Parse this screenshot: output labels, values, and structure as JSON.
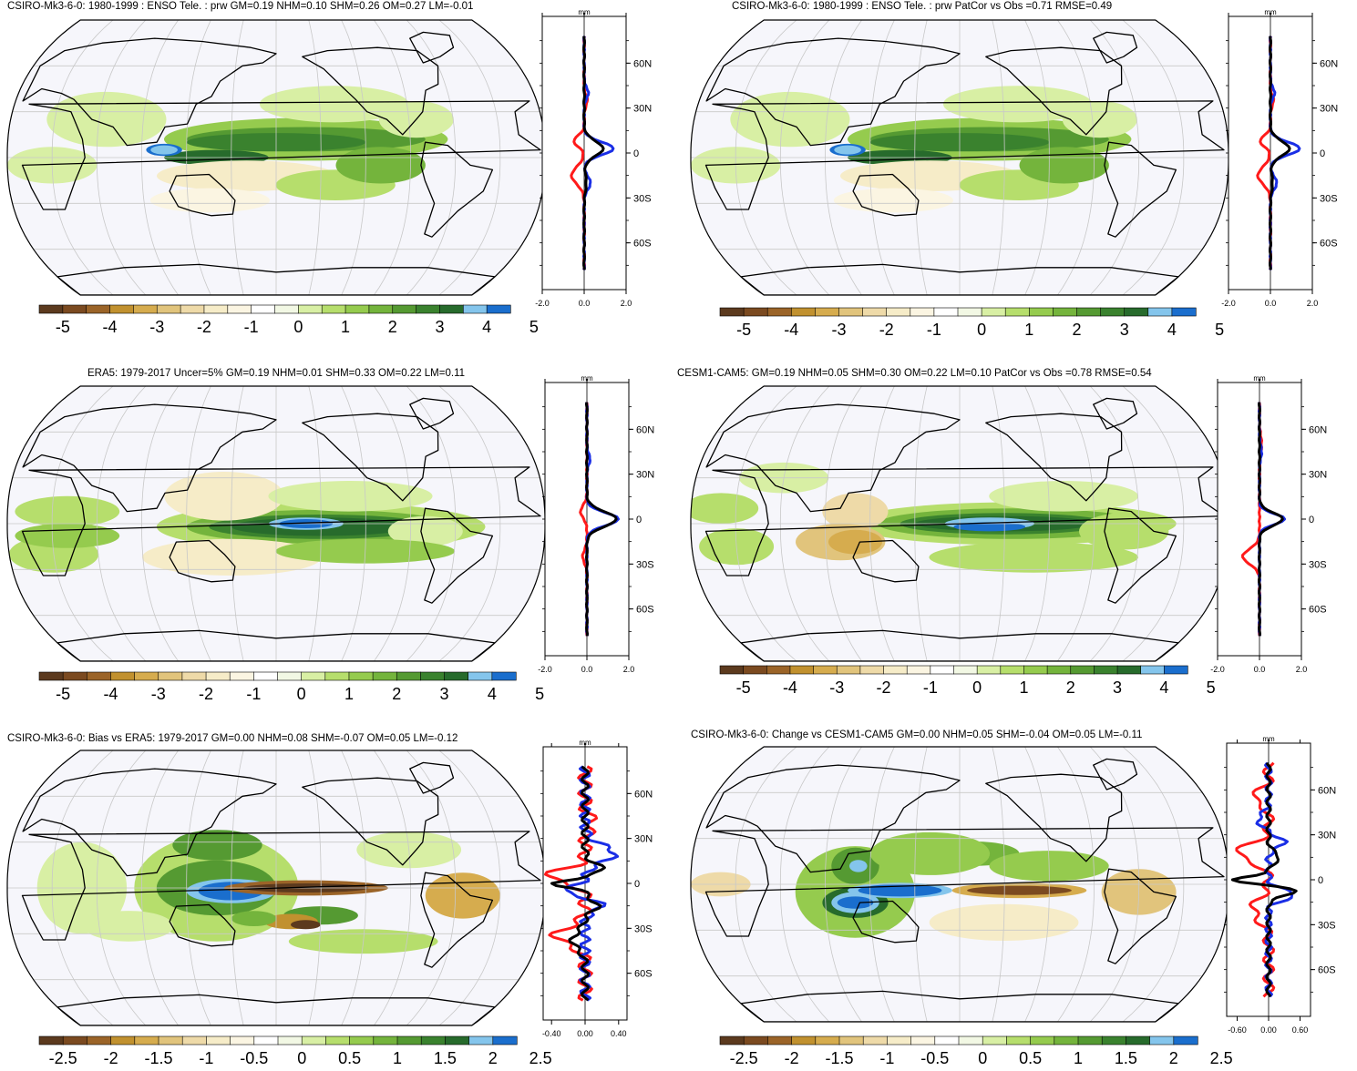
{
  "colors": {
    "ocean": "#f6f6fb",
    "graticule": "#c8c8c8",
    "coast": "#000000",
    "obs_line": "#ff1a1a",
    "model_line": "#1a2ee6",
    "mean_line": "#000000"
  },
  "palette": [
    "#5c3a1e",
    "#7b4a20",
    "#9b6428",
    "#c1912f",
    "#d6ac4e",
    "#e1c47c",
    "#eedaa8",
    "#f6ecc8",
    "#fbf5e2",
    "#ffffff",
    "#f2f8e4",
    "#d8efa4",
    "#b6de6c",
    "#95cb4e",
    "#74b43c",
    "#559a32",
    "#3a822e",
    "#276b2c",
    "#84c5ec",
    "#1a6ecd"
  ],
  "colorbar_ticks_std": [
    "-5",
    "-4",
    "-3",
    "-2",
    "-1",
    "0",
    "1",
    "2",
    "3",
    "4",
    "5"
  ],
  "colorbar_ticks_diff": [
    "-2.5",
    "-2",
    "-1.5",
    "-1",
    "-0.5",
    "0",
    "0.5",
    "1",
    "1.5",
    "2",
    "2.5"
  ],
  "lat_labels": [
    "60N",
    "30N",
    "0",
    "30S",
    "60S"
  ],
  "profile_unit": "mm",
  "panels": [
    {
      "id": "csiro-clim",
      "title": "CSIRO-Mk3-6-0: 1980-1999 : ENSO Tele. : prw GM=0.19 NHM=0.10 SHM=0.26 OM=0.27 LM=-0.01",
      "colorbar": "std",
      "profile_xticks": [
        "-2.0",
        "0.0",
        "2.0"
      ],
      "profile_xlim": [
        -2,
        2
      ],
      "pattern": "model"
    },
    {
      "id": "csiro-patcor",
      "title": "CSIRO-Mk3-6-0: 1980-1999 : ENSO Tele. : prw PatCor vs Obs =0.71 RMSE=0.49",
      "colorbar": "std",
      "profile_xticks": [
        "-2.0",
        "0.0",
        "2.0"
      ],
      "profile_xlim": [
        -2,
        2
      ],
      "pattern": "model"
    },
    {
      "id": "era5",
      "title": "ERA5: 1979-2017 Uncer=5% GM=0.19 NHM=0.01 SHM=0.33 OM=0.22 LM=0.11",
      "colorbar": "std",
      "profile_xticks": [
        "-2.0",
        "0.0",
        "2.0"
      ],
      "profile_xlim": [
        -2,
        2
      ],
      "pattern": "obs"
    },
    {
      "id": "cesm1",
      "title": "CESM1-CAM5: GM=0.19 NHM=0.05 SHM=0.30 OM=0.22 LM=0.10 PatCor vs Obs =0.78 RMSE=0.54",
      "colorbar": "std",
      "profile_xticks": [
        "-2.0",
        "0.0",
        "2.0"
      ],
      "profile_xlim": [
        -2,
        2
      ],
      "pattern": "cesm"
    },
    {
      "id": "bias",
      "title": "CSIRO-Mk3-6-0: Bias vs ERA5: 1979-2017 GM=0.00 NHM=0.08 SHM=-0.07 OM=0.05 LM=-0.12",
      "colorbar": "diff",
      "profile_xticks": [
        "-0.40",
        "0.00",
        "0.40"
      ],
      "profile_xlim": [
        -0.5,
        0.5
      ],
      "pattern": "bias"
    },
    {
      "id": "change",
      "title": "CSIRO-Mk3-6-0: Change vs CESM1-CAM5 GM=0.00 NHM=0.05 SHM=-0.04 OM=0.05 LM=-0.11",
      "colorbar": "diff",
      "profile_xticks": [
        "-0.60",
        "0.00",
        "0.60"
      ],
      "profile_xlim": [
        -0.8,
        0.8
      ],
      "pattern": "change"
    }
  ]
}
